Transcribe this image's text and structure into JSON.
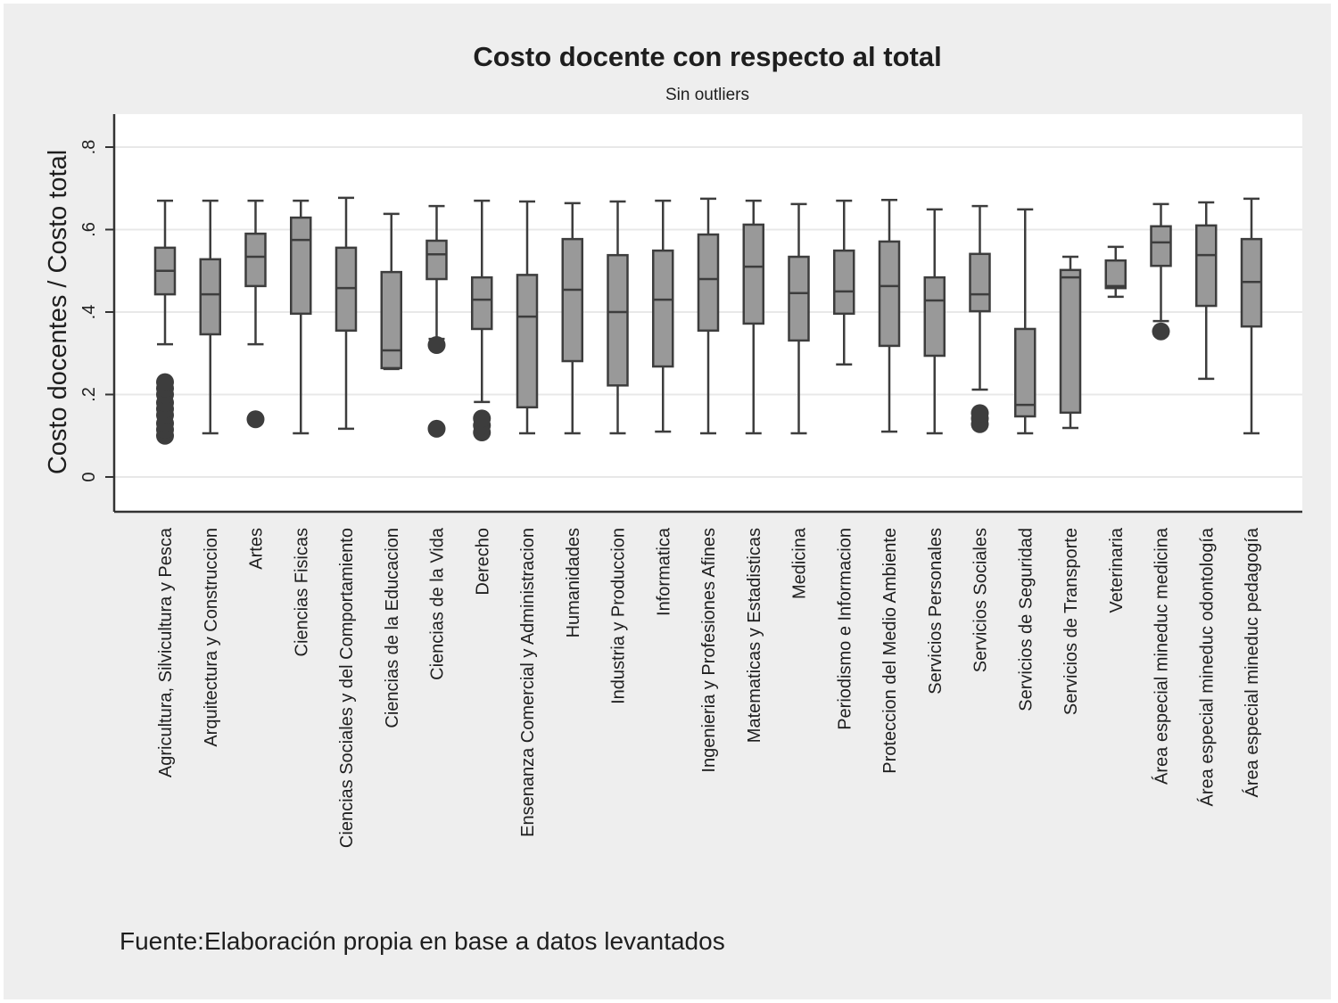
{
  "chart_data": {
    "type": "box",
    "title": "Costo docente con respecto al total",
    "subtitle": "Sin outliers",
    "ylabel": "Costo docentes / Costo total",
    "xlabel": "",
    "ylim": [
      -0.08,
      0.88
    ],
    "yticks": [
      0,
      0.2,
      0.4,
      0.6,
      0.8
    ],
    "ytick_labels": [
      "0",
      ".2",
      ".4",
      ".6",
      ".8"
    ],
    "grid": true,
    "note": "Fuente:Elaboración propia en base a datos levantados",
    "categories": [
      "Agricultura, Silvicultura y Pesca",
      "Arquitectura y Construccion",
      "Artes",
      "Ciencias Fisicas",
      "Ciencias Sociales y del Comportamiento",
      "Ciencias de la Educacion",
      "Ciencias de la Vida",
      "Derecho",
      "Ensenanza Comercial y Administracion",
      "Humanidades",
      "Industria y Produccion",
      "Informatica",
      "Ingenieria y Profesiones Afines",
      "Matematicas y Estadisticas",
      "Medicina",
      "Periodismo e Informacion",
      "Proteccion del Medio Ambiente",
      "Servicios Personales",
      "Servicios Sociales",
      "Servicios de Seguridad",
      "Servicios de Transporte",
      "Veterinaria",
      "Área especial mineduc medicina",
      "Área especial mineduc odontología",
      "Área especial mineduc pedagogía"
    ],
    "boxes": [
      {
        "whisker_low": 0.322,
        "q1": 0.443,
        "median": 0.5,
        "q3": 0.556,
        "whisker_high": 0.67,
        "outliers": [
          0.1,
          0.115,
          0.13,
          0.15,
          0.165,
          0.18,
          0.2,
          0.215,
          0.23
        ]
      },
      {
        "whisker_low": 0.106,
        "q1": 0.346,
        "median": 0.443,
        "q3": 0.528,
        "whisker_high": 0.67,
        "outliers": []
      },
      {
        "whisker_low": 0.322,
        "q1": 0.463,
        "median": 0.534,
        "q3": 0.59,
        "whisker_high": 0.67,
        "outliers": [
          0.14
        ]
      },
      {
        "whisker_low": 0.106,
        "q1": 0.396,
        "median": 0.575,
        "q3": 0.629,
        "whisker_high": 0.67,
        "outliers": []
      },
      {
        "whisker_low": 0.117,
        "q1": 0.355,
        "median": 0.458,
        "q3": 0.556,
        "whisker_high": 0.677,
        "outliers": []
      },
      {
        "whisker_low": 0.262,
        "q1": 0.264,
        "median": 0.307,
        "q3": 0.497,
        "whisker_high": 0.638,
        "outliers": []
      },
      {
        "whisker_low": 0.335,
        "q1": 0.48,
        "median": 0.54,
        "q3": 0.573,
        "whisker_high": 0.657,
        "outliers": [
          0.32,
          0.117
        ]
      },
      {
        "whisker_low": 0.182,
        "q1": 0.359,
        "median": 0.43,
        "q3": 0.484,
        "whisker_high": 0.67,
        "outliers": [
          0.108,
          0.125,
          0.142
        ]
      },
      {
        "whisker_low": 0.106,
        "q1": 0.169,
        "median": 0.389,
        "q3": 0.49,
        "whisker_high": 0.668,
        "outliers": []
      },
      {
        "whisker_low": 0.106,
        "q1": 0.281,
        "median": 0.454,
        "q3": 0.577,
        "whisker_high": 0.664,
        "outliers": []
      },
      {
        "whisker_low": 0.106,
        "q1": 0.222,
        "median": 0.4,
        "q3": 0.538,
        "whisker_high": 0.668,
        "outliers": []
      },
      {
        "whisker_low": 0.11,
        "q1": 0.268,
        "median": 0.43,
        "q3": 0.549,
        "whisker_high": 0.67,
        "outliers": []
      },
      {
        "whisker_low": 0.106,
        "q1": 0.355,
        "median": 0.48,
        "q3": 0.588,
        "whisker_high": 0.675,
        "outliers": []
      },
      {
        "whisker_low": 0.106,
        "q1": 0.372,
        "median": 0.51,
        "q3": 0.612,
        "whisker_high": 0.67,
        "outliers": []
      },
      {
        "whisker_low": 0.106,
        "q1": 0.331,
        "median": 0.446,
        "q3": 0.534,
        "whisker_high": 0.662,
        "outliers": []
      },
      {
        "whisker_low": 0.273,
        "q1": 0.396,
        "median": 0.45,
        "q3": 0.549,
        "whisker_high": 0.67,
        "outliers": []
      },
      {
        "whisker_low": 0.11,
        "q1": 0.318,
        "median": 0.463,
        "q3": 0.571,
        "whisker_high": 0.672,
        "outliers": []
      },
      {
        "whisker_low": 0.106,
        "q1": 0.294,
        "median": 0.428,
        "q3": 0.484,
        "whisker_high": 0.649,
        "outliers": []
      },
      {
        "whisker_low": 0.212,
        "q1": 0.402,
        "median": 0.443,
        "q3": 0.541,
        "whisker_high": 0.657,
        "outliers": [
          0.128,
          0.142,
          0.155
        ]
      },
      {
        "whisker_low": 0.106,
        "q1": 0.147,
        "median": 0.175,
        "q3": 0.359,
        "whisker_high": 0.649,
        "outliers": []
      },
      {
        "whisker_low": 0.119,
        "q1": 0.156,
        "median": 0.484,
        "q3": 0.502,
        "whisker_high": 0.534,
        "outliers": []
      },
      {
        "whisker_low": 0.437,
        "q1": 0.458,
        "median": 0.463,
        "q3": 0.525,
        "whisker_high": 0.558,
        "outliers": []
      },
      {
        "whisker_low": 0.378,
        "q1": 0.512,
        "median": 0.569,
        "q3": 0.608,
        "whisker_high": 0.662,
        "outliers": [
          0.353
        ]
      },
      {
        "whisker_low": 0.238,
        "q1": 0.415,
        "median": 0.538,
        "q3": 0.61,
        "whisker_high": 0.666,
        "outliers": []
      },
      {
        "whisker_low": 0.106,
        "q1": 0.365,
        "median": 0.473,
        "q3": 0.577,
        "whisker_high": 0.675,
        "outliers": []
      }
    ],
    "colors": {
      "box_fill": "#999999",
      "box_stroke": "#3d3d3d",
      "outlier": "#3d3d3d",
      "grid": "#e8e8e8",
      "plot_bg": "#ffffff",
      "panel_bg": "#eeeeee"
    }
  }
}
